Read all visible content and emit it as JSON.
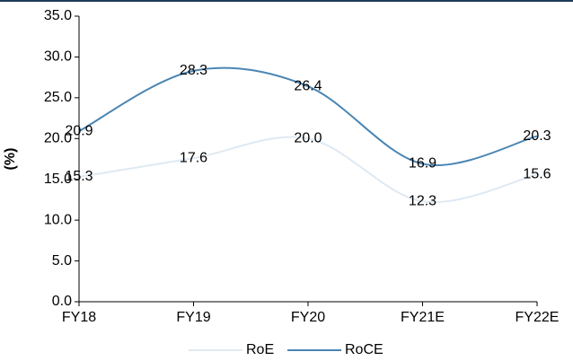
{
  "chart_data": {
    "type": "line",
    "y_label": "(%)",
    "categories": [
      "FY18",
      "FY19",
      "FY20",
      "FY21E",
      "FY22E"
    ],
    "series": [
      {
        "name": "RoE",
        "color": "#dfe9f2",
        "values": [
          15.3,
          17.6,
          20.0,
          12.3,
          15.6
        ],
        "value_labels": [
          "15.3",
          "17.6",
          "20.0",
          "12.3",
          "15.6"
        ]
      },
      {
        "name": "RoCE",
        "color": "#4a86b4",
        "values": [
          20.9,
          28.3,
          26.4,
          16.9,
          20.3
        ],
        "value_labels": [
          "20.9",
          "28.3",
          "26.4",
          "16.9",
          "20.3"
        ]
      }
    ],
    "ylim": [
      0,
      35
    ],
    "yticks": [
      {
        "value": 0,
        "label": "0.0"
      },
      {
        "value": 5,
        "label": "5.0"
      },
      {
        "value": 10,
        "label": "10.0"
      },
      {
        "value": 15,
        "label": "15.0"
      },
      {
        "value": 20,
        "label": "20.0"
      },
      {
        "value": 25,
        "label": "25.0"
      },
      {
        "value": 30,
        "label": "30.0"
      },
      {
        "value": 35,
        "label": "35.0"
      }
    ],
    "grid": false,
    "smooth": true,
    "legend": "bottom"
  }
}
